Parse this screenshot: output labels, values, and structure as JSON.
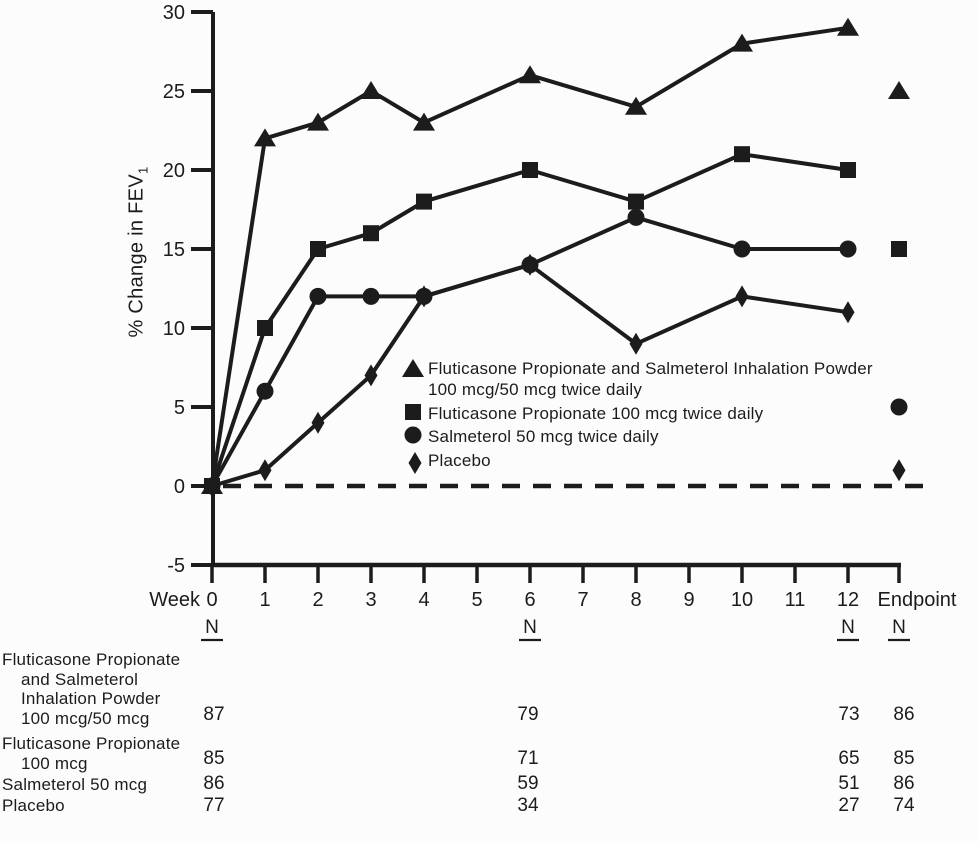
{
  "chart_data": {
    "type": "line",
    "title": "",
    "ylabel": "% Change in FEV",
    "ylabel_subscript": "1",
    "xlabel": "Week",
    "x_ticks": [
      0,
      1,
      2,
      3,
      4,
      5,
      6,
      7,
      8,
      9,
      10,
      11,
      12
    ],
    "endpoint_label": "Endpoint",
    "y_ticks": [
      30,
      25,
      20,
      15,
      10,
      5,
      0,
      -5
    ],
    "ylim": [
      -5,
      30
    ],
    "grid": "off",
    "legend_position": "inside-center",
    "x_weeks": [
      0,
      1,
      2,
      3,
      4,
      6,
      8,
      10,
      12
    ],
    "zero_reference_line": {
      "y": 0,
      "style": "dashed"
    },
    "series": [
      {
        "name": "Fluticasone Propionate and Salmeterol Inhalation Powder 100 mcg/50 mcg twice daily",
        "marker": "triangle",
        "values": [
          0,
          22,
          23,
          25,
          23,
          26,
          24,
          28,
          29
        ],
        "endpoint_value": 25
      },
      {
        "name": "Fluticasone Propionate 100 mcg twice daily",
        "marker": "square",
        "values": [
          0,
          10,
          15,
          16,
          18,
          20,
          18,
          21,
          20
        ],
        "endpoint_value": 15
      },
      {
        "name": "Salmeterol 50 mcg twice daily",
        "marker": "circle",
        "values": [
          0,
          6,
          12,
          12,
          12,
          14,
          17,
          15,
          15
        ],
        "endpoint_value": 5
      },
      {
        "name": "Placebo",
        "marker": "diamond",
        "values": [
          0,
          1,
          4,
          7,
          12,
          14,
          9,
          12,
          11
        ],
        "endpoint_value": 1
      }
    ],
    "legend": [
      {
        "marker": "triangle",
        "lines": [
          "Fluticasone Propionate and Salmeterol Inhalation Powder",
          "100 mcg/50 mcg twice daily"
        ]
      },
      {
        "marker": "square",
        "lines": [
          "Fluticasone Propionate 100 mcg twice daily"
        ]
      },
      {
        "marker": "circle",
        "lines": [
          "Salmeterol 50 mcg twice daily"
        ]
      },
      {
        "marker": "diamond",
        "lines": [
          "Placebo"
        ]
      }
    ],
    "n_row": {
      "label": "N",
      "columns": [
        0,
        6,
        12,
        "endpoint"
      ]
    }
  },
  "n_table": {
    "column_weeks": [
      "0",
      "6",
      "12",
      "Endpoint"
    ],
    "rows": [
      {
        "label_lines": [
          "Fluticasone Propionate",
          "and Salmeterol",
          "Inhalation Powder",
          "100 mcg/50 mcg"
        ],
        "values": [
          "87",
          "79",
          "73",
          "86"
        ]
      },
      {
        "label_lines": [
          "Fluticasone Propionate",
          "100 mcg"
        ],
        "values": [
          "85",
          "71",
          "65",
          "85"
        ]
      },
      {
        "label_lines": [
          "Salmeterol 50 mcg"
        ],
        "values": [
          "86",
          "59",
          "51",
          "86"
        ]
      },
      {
        "label_lines": [
          "Placebo"
        ],
        "values": [
          "77",
          "34",
          "27",
          "74"
        ]
      }
    ]
  },
  "colors": {
    "ink": "#1c1c1c",
    "background": "#fcfcfc"
  }
}
